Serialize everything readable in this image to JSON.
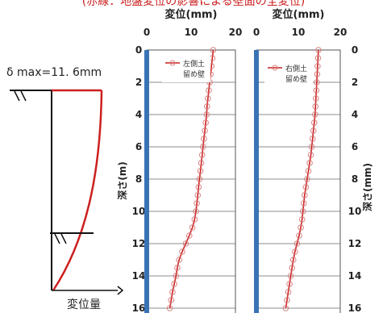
{
  "header": {
    "text": "(赤線：地盤変位の影響による壁面の全変位)"
  },
  "schematic": {
    "dmax_label": "δ max=11. 6mm",
    "xaxis_label": "変位量"
  },
  "colors": {
    "accent": "#cc1f1f",
    "wall": "#3a73b5",
    "marker": "#d98080",
    "grid": "#666666"
  },
  "chart_data": [
    {
      "type": "line",
      "title": "変位(mm)",
      "ylabel": "深さ(m)",
      "xlim": [
        0,
        20
      ],
      "ylim": [
        0,
        16
      ],
      "y_inverted": true,
      "xticks": [
        "0",
        "10",
        "20"
      ],
      "yticks": [
        "0",
        "2",
        "4",
        "6",
        "8",
        "10",
        "12",
        "14",
        "16"
      ],
      "series": [
        {
          "name": "左側土留め壁",
          "legend_lines": [
            "左側土",
            "留め壁"
          ],
          "y": [
            0,
            0.5,
            1,
            1.5,
            2,
            2.5,
            3,
            3.5,
            4,
            4.5,
            5,
            5.5,
            6,
            6.5,
            7,
            7.5,
            8,
            8.5,
            9,
            9.5,
            10,
            10.5,
            11,
            11.5,
            12,
            12.5,
            13,
            13.5,
            14,
            14.5,
            15,
            15.5,
            16
          ],
          "x": [
            15.0,
            14.8,
            14.6,
            14.4,
            14.2,
            14.0,
            13.8,
            13.6,
            13.5,
            13.3,
            13.1,
            12.9,
            12.7,
            12.5,
            12.3,
            12.1,
            11.9,
            11.7,
            11.5,
            11.3,
            11.1,
            10.8,
            10.3,
            9.6,
            8.8,
            8.0,
            7.3,
            6.9,
            6.6,
            6.2,
            5.8,
            5.5,
            5.2
          ]
        }
      ]
    },
    {
      "type": "line",
      "title": "変位(mm)",
      "ylabel": "深さ(mm)",
      "xlim": [
        0,
        20
      ],
      "ylim": [
        0,
        16
      ],
      "y_inverted": true,
      "xticks": [
        "0",
        "10",
        "20"
      ],
      "yticks": [
        "0",
        "2",
        "4",
        "6",
        "8",
        "10",
        "12",
        "14",
        "16"
      ],
      "series": [
        {
          "name": "右側土留め壁",
          "legend_lines": [
            "右側土",
            "留め壁"
          ],
          "y": [
            0,
            0.5,
            1,
            1.5,
            2,
            2.5,
            3,
            3.5,
            4,
            4.5,
            5,
            5.5,
            6,
            6.5,
            7,
            7.5,
            8,
            8.5,
            9,
            9.5,
            10,
            10.5,
            11,
            11.5,
            12,
            12.5,
            13,
            13.5,
            14,
            14.5,
            15,
            15.5,
            16
          ],
          "x": [
            14.8,
            14.7,
            14.6,
            14.5,
            14.4,
            14.3,
            14.2,
            14.1,
            14.0,
            13.8,
            13.6,
            13.4,
            13.2,
            13.0,
            12.7,
            12.4,
            12.1,
            11.8,
            11.5,
            11.3,
            11.1,
            10.9,
            10.6,
            10.2,
            9.7,
            9.2,
            8.8,
            8.5,
            8.2,
            7.9,
            7.6,
            7.3,
            7.0
          ]
        }
      ]
    }
  ]
}
